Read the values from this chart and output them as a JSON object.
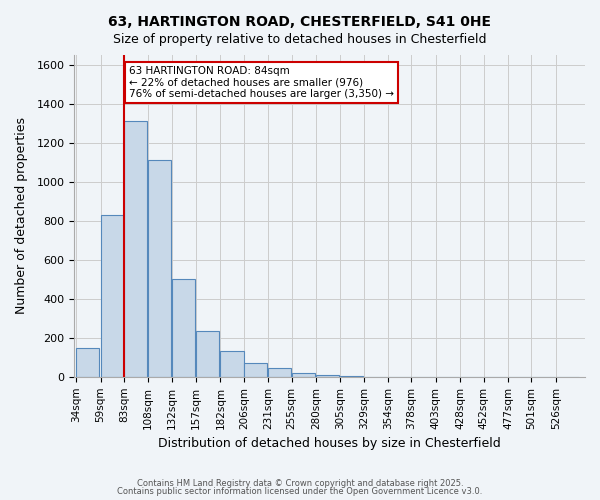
{
  "title_line1": "63, HARTINGTON ROAD, CHESTERFIELD, S41 0HE",
  "title_line2": "Size of property relative to detached houses in Chesterfield",
  "xlabel": "Distribution of detached houses by size in Chesterfield",
  "ylabel": "Number of detached properties",
  "bin_labels": [
    "34sqm",
    "59sqm",
    "83sqm",
    "108sqm",
    "132sqm",
    "157sqm",
    "182sqm",
    "206sqm",
    "231sqm",
    "255sqm",
    "280sqm",
    "305sqm",
    "329sqm",
    "354sqm",
    "378sqm",
    "403sqm",
    "428sqm",
    "452sqm",
    "477sqm",
    "501sqm",
    "526sqm"
  ],
  "bin_values": [
    150,
    830,
    1310,
    1110,
    500,
    235,
    130,
    70,
    45,
    20,
    10,
    5,
    0,
    0,
    0,
    0,
    0,
    0,
    0,
    0,
    0
  ],
  "bar_color": "#c8d8e8",
  "bar_edge_color": "#5588bb",
  "property_line_x": 83,
  "property_line_color": "#cc0000",
  "annotation_text": "63 HARTINGTON ROAD: 84sqm\n← 22% of detached houses are smaller (976)\n76% of semi-detached houses are larger (3,350) →",
  "annotation_box_color": "#ffffff",
  "annotation_box_edge": "#cc0000",
  "ylim": [
    0,
    1650
  ],
  "yticks": [
    0,
    200,
    400,
    600,
    800,
    1000,
    1200,
    1400,
    1600
  ],
  "grid_color": "#cccccc",
  "bg_color": "#f0f4f8",
  "footer_line1": "Contains HM Land Registry data © Crown copyright and database right 2025.",
  "footer_line2": "Contains public sector information licensed under the Open Government Licence v3.0."
}
